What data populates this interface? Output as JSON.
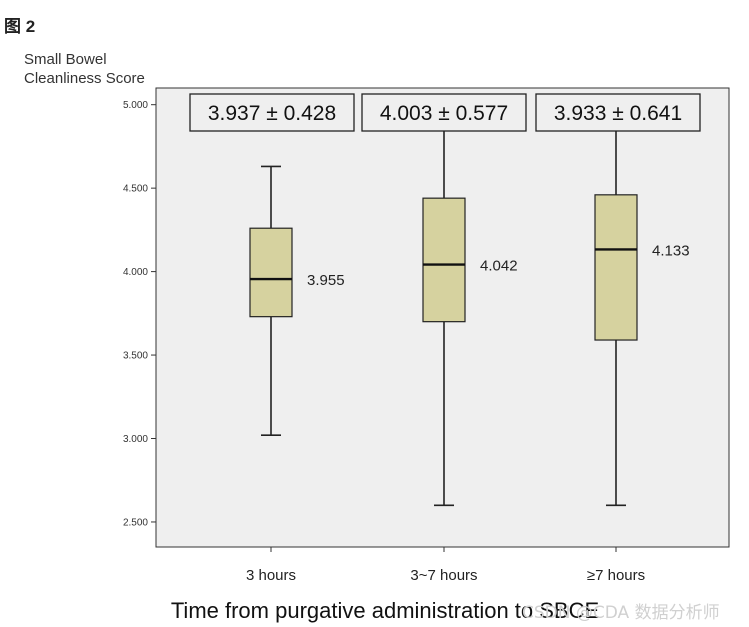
{
  "figure_label": "图 2",
  "watermark": "CSDN @CDA 数据分析师",
  "chart_data": {
    "type": "box",
    "ylabel_lines": [
      "Small Bowel",
      "Cleanliness Score"
    ],
    "xlabel": "Time from purgative administration to SBCE",
    "ylim": [
      2.35,
      5.1
    ],
    "yticks": [
      "5.000",
      "4.500",
      "4.000",
      "3.500",
      "3.000",
      "2.500"
    ],
    "grid": false,
    "colors": {
      "box_fill": "#d6d29f",
      "plot_bg": "#efefef",
      "stroke": "#222222"
    },
    "categories": [
      "3 hours",
      "3~7 hours",
      "≥7 hours"
    ],
    "boxes": [
      {
        "category": "3 hours",
        "min": 3.02,
        "q1": 3.73,
        "median": 3.955,
        "q3": 4.26,
        "max": 4.63,
        "median_label": "3.955",
        "summary": "3.937 ± 0.428"
      },
      {
        "category": "3~7 hours",
        "min": 2.6,
        "q1": 3.7,
        "median": 4.042,
        "q3": 4.44,
        "max": 4.89,
        "median_label": "4.042",
        "summary": "4.003 ± 0.577"
      },
      {
        "category": "≥7 hours",
        "min": 2.6,
        "q1": 3.59,
        "median": 4.133,
        "q3": 4.46,
        "max": 4.86,
        "median_label": "4.133",
        "summary": "3.933 ± 0.641"
      }
    ]
  }
}
